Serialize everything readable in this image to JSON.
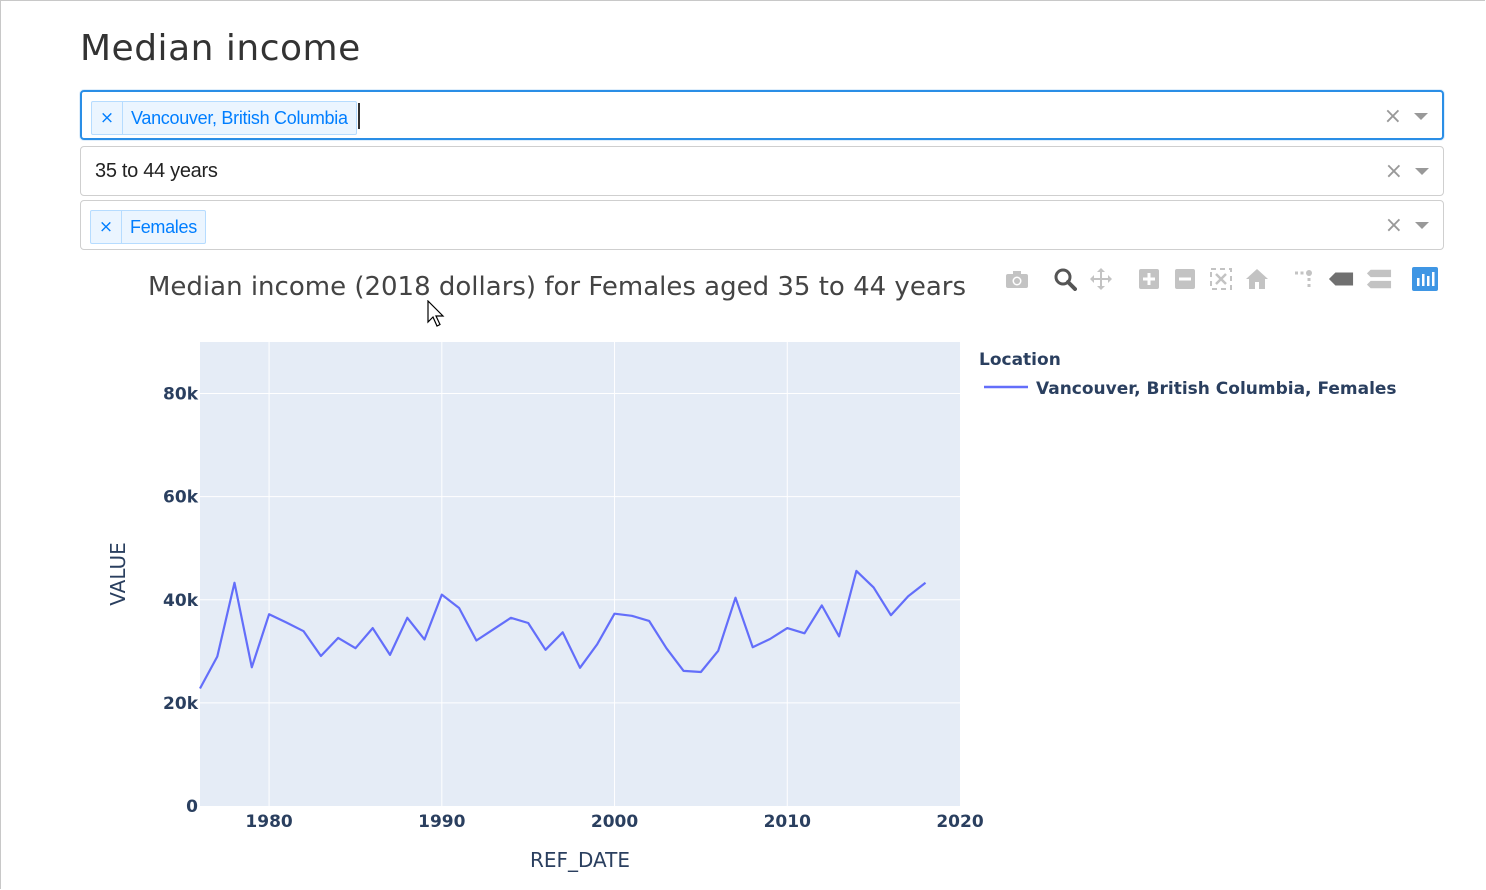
{
  "page": {
    "title": "Median income"
  },
  "filters": {
    "location": {
      "tag": "Vancouver, British Columbia",
      "remove": "×",
      "clear": "×"
    },
    "age": {
      "value": "35 to 44 years",
      "clear": "×"
    },
    "sex": {
      "tag": "Females",
      "remove": "×",
      "clear": "×"
    }
  },
  "modebar": [
    "camera-icon",
    "zoom-icon",
    "pan-icon",
    "zoom-in-icon",
    "zoom-out-icon",
    "autoscale-icon",
    "home-icon",
    "spike-lines-icon",
    "hover-closest-icon",
    "hover-compare-icon",
    "plotly-logo-icon"
  ],
  "chart_data": {
    "type": "line",
    "title": "Median income (2018 dollars) for Females aged 35 to 44 years",
    "xlabel": "REF_DATE",
    "ylabel": "VALUE",
    "xlim": [
      1976,
      2020
    ],
    "ylim": [
      0,
      90000
    ],
    "x_ticks": [
      1980,
      1990,
      2000,
      2010,
      2020
    ],
    "x_tick_labels": [
      "1980",
      "1990",
      "2000",
      "2010",
      "2020"
    ],
    "y_ticks": [
      0,
      20000,
      40000,
      60000,
      80000
    ],
    "y_tick_labels": [
      "0",
      "20k",
      "40k",
      "60k",
      "80k"
    ],
    "grid": true,
    "legend": {
      "title": "Location",
      "placement": "right"
    },
    "series": [
      {
        "name": "Vancouver, British Columbia, Females",
        "color": "#636efa",
        "x": [
          1976,
          1977,
          1978,
          1979,
          1980,
          1981,
          1982,
          1983,
          1984,
          1985,
          1986,
          1987,
          1988,
          1989,
          1990,
          1991,
          1992,
          1993,
          1994,
          1995,
          1996,
          1997,
          1998,
          1999,
          2000,
          2001,
          2002,
          2003,
          2004,
          2005,
          2006,
          2007,
          2008,
          2009,
          2010,
          2011,
          2012,
          2013,
          2014,
          2015,
          2016,
          2017,
          2018
        ],
        "values": [
          22800,
          29000,
          43300,
          26900,
          37200,
          35600,
          33900,
          29100,
          32600,
          30600,
          34500,
          29300,
          36500,
          32300,
          41000,
          38400,
          32100,
          34300,
          36500,
          35500,
          30300,
          33700,
          26800,
          31400,
          37300,
          36900,
          35900,
          30600,
          26200,
          26000,
          30100,
          40400,
          30800,
          32400,
          34500,
          33500,
          38900,
          32900,
          45600,
          42400,
          37000,
          40700,
          43300
        ]
      }
    ]
  }
}
